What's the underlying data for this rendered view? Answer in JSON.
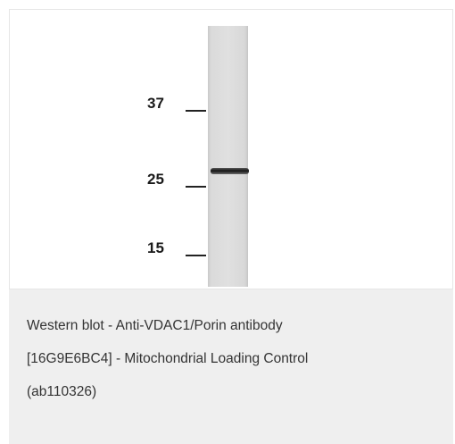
{
  "blot": {
    "markers": [
      {
        "label": "37"
      },
      {
        "label": "25"
      },
      {
        "label": "15"
      }
    ]
  },
  "caption": {
    "lines": [
      "Western blot - Anti-VDAC1/Porin antibody",
      "[16G9E6BC4] - Mitochondrial Loading Control",
      "(ab110326)"
    ]
  },
  "colors": {
    "panel_background": "#ffffff",
    "caption_background": "#efefef",
    "lane": "#dcdcdc",
    "band": "#1e1e1e",
    "text": "#333333"
  }
}
